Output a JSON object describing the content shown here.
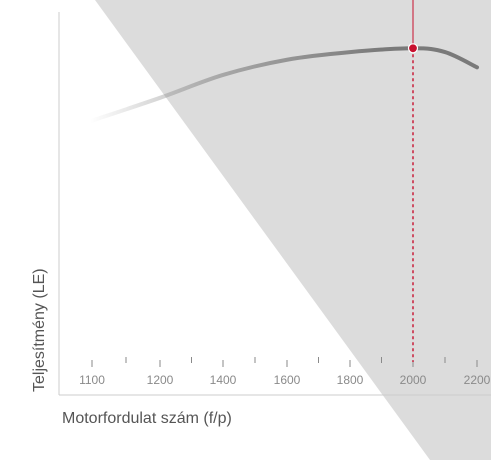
{
  "chart_data": {
    "type": "line",
    "xlabel": "Motorfordulat szám (f/p)",
    "ylabel": "Teljesítmény (LE)",
    "x_ticks": [
      "1100",
      "1200",
      "1400",
      "1600",
      "1800",
      "2000",
      "2200"
    ],
    "y_range": [
      0,
      100
    ],
    "series": [
      {
        "x": [
          1100,
          1200,
          1400,
          1600,
          1800,
          2000,
          2100,
          2200
        ],
        "y": [
          72,
          78,
          84,
          88,
          90,
          91,
          90,
          86
        ]
      }
    ],
    "highlight": {
      "x": 2000,
      "y": 91
    },
    "colors": {
      "line": "#7a7a7a",
      "marker": "#c8102e",
      "shaded_region": "#dcdcdc",
      "axis": "#cccccc",
      "text": "#555555"
    }
  }
}
